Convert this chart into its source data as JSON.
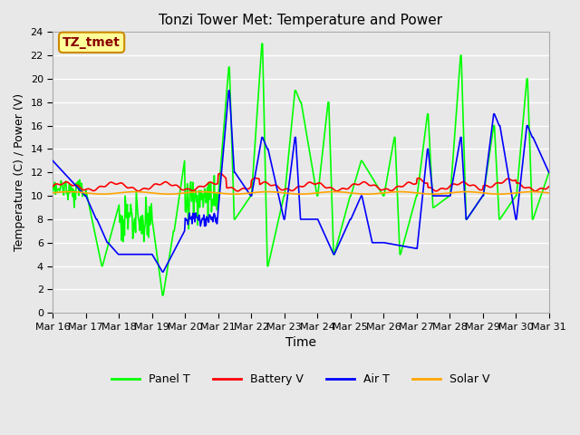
{
  "title": "Tonzi Tower Met: Temperature and Power",
  "xlabel": "Time",
  "ylabel": "Temperature (C) / Power (V)",
  "ylim": [
    0,
    24
  ],
  "yticks": [
    0,
    2,
    4,
    6,
    8,
    10,
    12,
    14,
    16,
    18,
    20,
    22,
    24
  ],
  "xtick_labels": [
    "Mar 16",
    "Mar 17",
    "Mar 18",
    "Mar 19",
    "Mar 20",
    "Mar 21",
    "Mar 22",
    "Mar 23",
    "Mar 24",
    "Mar 25",
    "Mar 26",
    "Mar 27",
    "Mar 28",
    "Mar 29",
    "Mar 30",
    "Mar 31"
  ],
  "background_color": "#e8e8e8",
  "plot_bg_color": "#e8e8e8",
  "grid_color": "#ffffff",
  "colors": {
    "Panel T": "#00ff00",
    "Battery V": "#ff0000",
    "Air T": "#0000ff",
    "Solar V": "#ffa500"
  },
  "annotation_text": "TZ_tmet",
  "annotation_bg": "#ffff99",
  "annotation_border": "#cc8800"
}
